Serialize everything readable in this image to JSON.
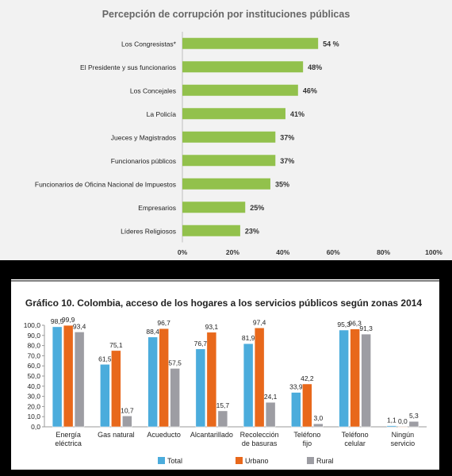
{
  "charts": [
    {
      "title": "Percepción de corrupción por instituciones públicas",
      "chart_data": {
        "type": "bar",
        "orientation": "horizontal",
        "title": "Percepción de corrupción por instituciones públicas",
        "categories": [
          "Los Congresistas*",
          "El Presidente y sus funcionarios",
          "Los Concejales",
          "La Policía",
          "Jueces y Magistrados",
          "Funcionarios públicos",
          "Funcionarios de Oficina Nacional de Impuestos",
          "Empresarios",
          "Líderes Religiosos"
        ],
        "values": [
          54,
          48,
          46,
          41,
          37,
          37,
          35,
          25,
          23
        ],
        "value_labels": [
          "54 %",
          "48%",
          "46%",
          "41%",
          "37%",
          "37%",
          "35%",
          "25%",
          "23%"
        ],
        "xlim": [
          0,
          100
        ],
        "ticks": [
          "0%",
          "20%",
          "40%",
          "60%",
          "80%",
          "100%"
        ],
        "grid": false,
        "colors": {
          "bar": "#92c14c"
        }
      }
    },
    {
      "title": "Gráfico 10. Colombia, acceso de los hogares a los servicios públicos según zonas 2014",
      "chart_data": {
        "type": "bar",
        "title": "Gráfico 10. Colombia, acceso de los hogares a los servicios públicos según zonas 2014",
        "categories": [
          [
            "Energía",
            "eléctrica"
          ],
          [
            "Gas natural"
          ],
          [
            "Acueducto"
          ],
          [
            "Alcantarillado"
          ],
          [
            "Recolección",
            "de basuras"
          ],
          [
            "Teléfono",
            "fijo"
          ],
          [
            "Teléfono",
            "celular"
          ],
          [
            "Ningún",
            "servicio"
          ]
        ],
        "series": [
          {
            "name": "Total",
            "color": "#4bacdc",
            "values": [
              98.5,
              61.5,
              88.4,
              76.7,
              81.9,
              33.9,
              95.3,
              1.1
            ],
            "labels": [
              "98,5",
              "61,5",
              "88,4",
              "76,7",
              "81,9",
              "33,9",
              "95,3",
              "1,1"
            ]
          },
          {
            "name": "Urbano",
            "color": "#e8681b",
            "values": [
              99.9,
              75.1,
              96.7,
              93.1,
              97.4,
              42.2,
              96.3,
              0.0
            ],
            "labels": [
              "99,9",
              "75,1",
              "96,7",
              "93,1",
              "97,4",
              "42,2",
              "96,3",
              "0,0"
            ]
          },
          {
            "name": "Rural",
            "color": "#9d9da3",
            "values": [
              93.4,
              10.7,
              57.5,
              15.7,
              24.1,
              3.0,
              91.3,
              5.3
            ],
            "labels": [
              "93,4",
              "10,7",
              "57,5",
              "15,7",
              "24,1",
              "3,0",
              "91,3",
              "5,3"
            ]
          }
        ],
        "ylim": [
          0,
          100
        ],
        "yticks": [
          "0,0",
          "10,0",
          "20,0",
          "30,0",
          "40,0",
          "50,0",
          "60,0",
          "70,0",
          "80,0",
          "90,0",
          "100,0"
        ],
        "grid": false,
        "legend": "bottom"
      }
    }
  ]
}
